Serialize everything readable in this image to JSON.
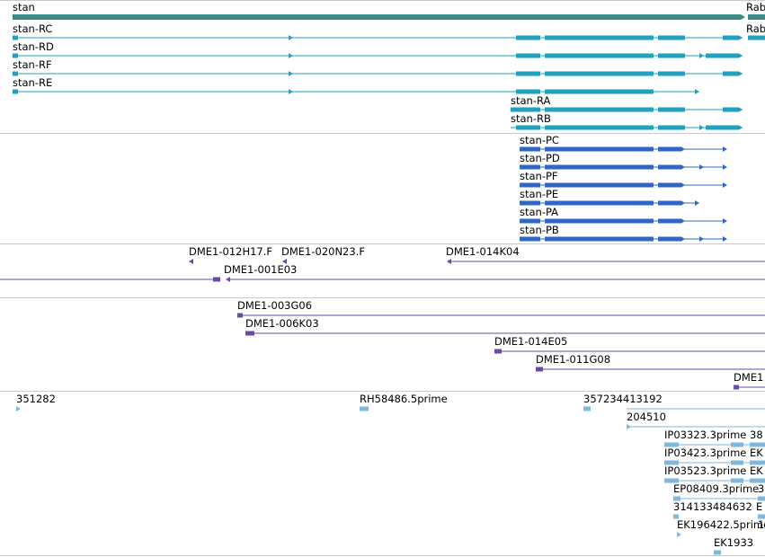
{
  "tracks": {
    "gene": {
      "label": "stan",
      "neighbor": "Rab",
      "color": "#3a8a86"
    },
    "transcripts": {
      "color": "#1fa2bf",
      "rows": [
        {
          "label": "stan-RC",
          "neighbor": "Rab"
        },
        {
          "label": "stan-RD"
        },
        {
          "label": "stan-RF"
        },
        {
          "label": "stan-RE"
        },
        {
          "label": "stan-RA"
        },
        {
          "label": "stan-RB"
        }
      ]
    },
    "proteins": {
      "color": "#2f67c9",
      "rows": [
        {
          "label": "stan-PC"
        },
        {
          "label": "stan-PD"
        },
        {
          "label": "stan-PF"
        },
        {
          "label": "stan-PE"
        },
        {
          "label": "stan-PA"
        },
        {
          "label": "stan-PB"
        }
      ]
    },
    "bac_clones": {
      "color": "#6a4aa6",
      "labels": [
        "DME1-012H17.F",
        "DME1-020N23.F",
        "DME1-014K04",
        "DME1-001E03",
        "DME1-003G06",
        "DME1-006K03",
        "DME1-014E05",
        "DME1-011G08",
        "DME1"
      ]
    },
    "ests": {
      "color": "#7fb8dc",
      "labels": [
        "351282",
        "RH58486.5prime",
        "357234413192",
        "204510",
        "IP03323.3prime",
        "38",
        "IP03423.3prime",
        "EK",
        "IP03523.3prime",
        "EK",
        "EP08409.3prime",
        "3",
        "314133484632",
        "E",
        "EK196422.5prime",
        "EK1933",
        "1"
      ]
    }
  }
}
